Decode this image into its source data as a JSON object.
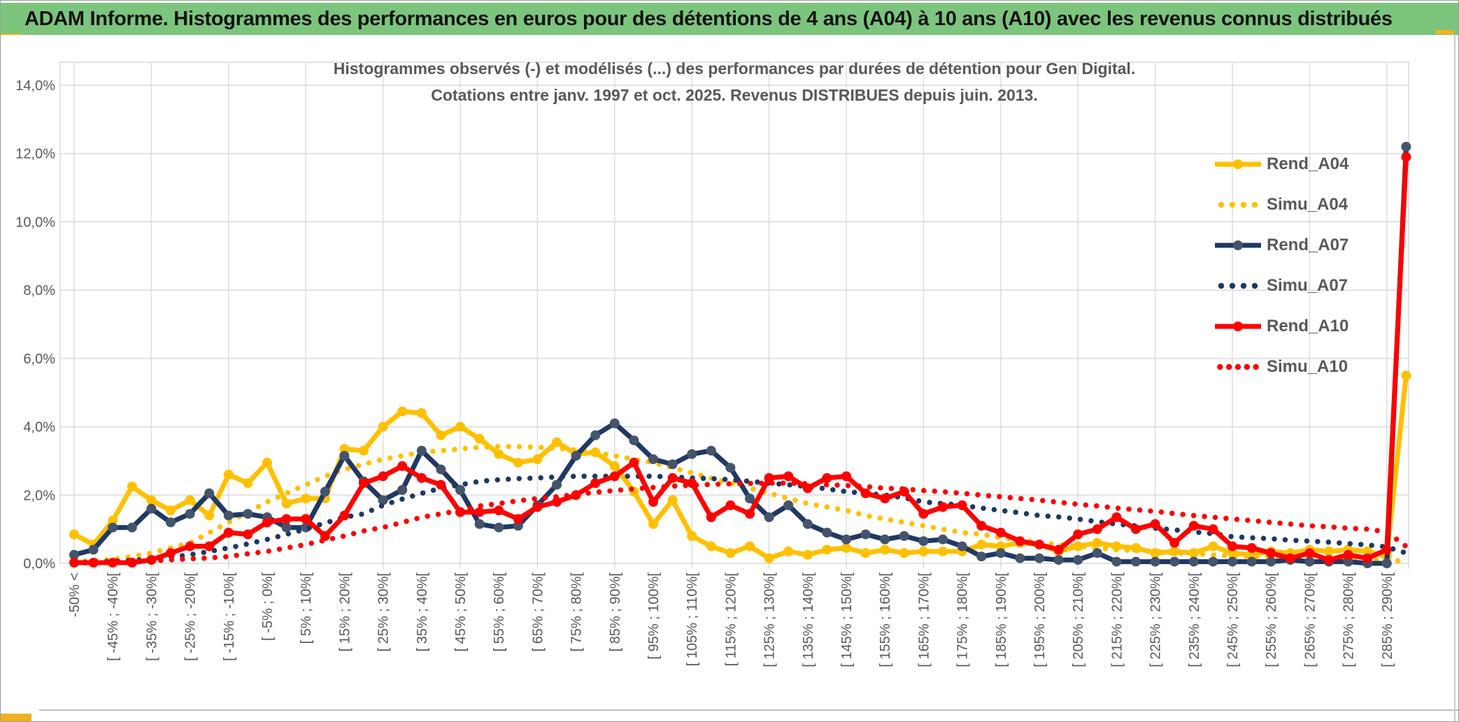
{
  "window": {
    "header_title": "ADAM Informe. Histogrammes des performances en euros pour des détentions de 4 ans (A04) à 10 ans (A10) avec les revenus connus distribués"
  },
  "colors": {
    "header_bg": "#7CC57D",
    "header_text": "#111111",
    "gold": "#FFC000",
    "navy": "#1F3864",
    "navy_marker": "#44546A",
    "red": "#FF0000",
    "grid": "#D9D9D9",
    "axis_text": "#595959",
    "title_text": "#595959",
    "accent": "#F2B21D"
  },
  "chart_data": {
    "type": "line",
    "title": "Histogrammes observés (-) et modélisés (...) des performances par durées de détention pour Gen Digital.",
    "subtitle": "Cotations entre janv. 1997 et oct. 2025. Revenus DISTRIBUES depuis juin. 2013.",
    "xlabel": "",
    "ylabel": "",
    "ylim": [
      0,
      14
    ],
    "ytick_step": 2,
    "ytick_labels": [
      "0,0%",
      "2,0%",
      "4,0%",
      "6,0%",
      "8,0%",
      "10,0%",
      "12,0%",
      "14,0%"
    ],
    "grid": true,
    "legend_position": "right",
    "categories": [
      "-50% <",
      "",
      "[ -45% ; -40%[",
      "",
      "[ -35% ; -30%[",
      "",
      "[ -25% ; -20%[",
      "",
      "[ -15% ; -10%[",
      "",
      "[ -5% ; 0%[",
      "",
      "[ 5% ; 10%[",
      "",
      "[ 15% ; 20%[",
      "",
      "[ 25% ; 30%[",
      "",
      "[ 35% ; 40%[",
      "",
      "[ 45% ; 50%[",
      "",
      "[ 55% ; 60%[",
      "",
      "[ 65% ; 70%[",
      "",
      "[ 75% ; 80%[",
      "",
      "[ 85% ; 90%[",
      "",
      "[ 95% ; 100%[",
      "",
      "[ 105% ; 110%[",
      "",
      "[ 115% ; 120%[",
      "",
      "[ 125% ; 130%[",
      "",
      "[ 135% ; 140%[",
      "",
      "[ 145% ; 150%[",
      "",
      "[ 155% ; 160%[",
      "",
      "[ 165% ; 170%[",
      "",
      "[ 175% ; 180%[",
      "",
      "[ 185% ; 190%[",
      "",
      "[ 195% ; 200%[",
      "",
      "[ 205% ; 210%[",
      "",
      "[ 215% ; 220%[",
      "",
      "[ 225% ; 230%[",
      "",
      "[ 235% ; 240%[",
      "",
      "[ 245% ; 250%[",
      "",
      "[ 255% ; 260%[",
      "",
      "[ 265% ; 270%[",
      "",
      "[ 275% ; 280%[",
      "",
      "[ 285% ; 290%[",
      ""
    ],
    "series": [
      {
        "name": "Rend_A04",
        "style": "solid",
        "color": "#FFC000",
        "marker_color": "#FFC000",
        "values": [
          0.85,
          0.55,
          1.25,
          2.25,
          1.85,
          1.55,
          1.85,
          1.4,
          2.6,
          2.35,
          2.95,
          1.75,
          1.9,
          1.9,
          3.35,
          3.3,
          4.0,
          4.45,
          4.4,
          3.75,
          4.0,
          3.65,
          3.2,
          2.95,
          3.05,
          3.55,
          3.2,
          3.25,
          2.85,
          2.1,
          1.15,
          1.85,
          0.8,
          0.5,
          0.3,
          0.5,
          0.15,
          0.35,
          0.25,
          0.4,
          0.45,
          0.3,
          0.4,
          0.3,
          0.35,
          0.35,
          0.35,
          0.55,
          0.5,
          0.6,
          0.55,
          0.35,
          0.5,
          0.6,
          0.5,
          0.45,
          0.3,
          0.35,
          0.3,
          0.5,
          0.3,
          0.25,
          0.35,
          0.3,
          0.4,
          0.35,
          0.4,
          0.35,
          0.2,
          5.5
        ]
      },
      {
        "name": "Simu_A04",
        "style": "dotted",
        "color": "#FFC000",
        "marker_color": "#FFC000",
        "values": [
          0.05,
          0.08,
          0.12,
          0.2,
          0.3,
          0.45,
          0.6,
          0.9,
          1.2,
          1.5,
          1.8,
          2.05,
          2.3,
          2.55,
          2.75,
          2.9,
          3.05,
          3.15,
          3.25,
          3.3,
          3.35,
          3.4,
          3.42,
          3.42,
          3.4,
          3.37,
          3.32,
          3.25,
          3.15,
          3.05,
          2.95,
          2.8,
          2.65,
          2.5,
          2.35,
          2.2,
          2.05,
          1.9,
          1.75,
          1.65,
          1.55,
          1.4,
          1.3,
          1.2,
          1.1,
          1.0,
          0.9,
          0.85,
          0.75,
          0.7,
          0.6,
          0.55,
          0.5,
          0.45,
          0.4,
          0.38,
          0.35,
          0.3,
          0.28,
          0.25,
          0.22,
          0.2,
          0.18,
          0.16,
          0.15,
          0.13,
          0.12,
          0.1,
          0.1,
          0.05
        ]
      },
      {
        "name": "Rend_A07",
        "style": "solid",
        "color": "#1F3864",
        "marker_color": "#44546A",
        "values": [
          0.25,
          0.4,
          1.05,
          1.05,
          1.6,
          1.2,
          1.45,
          2.05,
          1.4,
          1.45,
          1.35,
          1.05,
          1.05,
          2.1,
          3.15,
          2.4,
          1.85,
          2.15,
          3.3,
          2.75,
          2.15,
          1.15,
          1.05,
          1.1,
          1.7,
          2.3,
          3.15,
          3.75,
          4.1,
          3.6,
          3.05,
          2.9,
          3.2,
          3.3,
          2.8,
          1.9,
          1.35,
          1.7,
          1.15,
          0.9,
          0.7,
          0.85,
          0.7,
          0.8,
          0.65,
          0.7,
          0.5,
          0.2,
          0.3,
          0.15,
          0.15,
          0.1,
          0.1,
          0.3,
          0.05,
          0.05,
          0.05,
          0.05,
          0.05,
          0.05,
          0.05,
          0.05,
          0.05,
          0.1,
          0.05,
          0.05,
          0.05,
          0.0,
          0.0,
          12.2
        ]
      },
      {
        "name": "Simu_A07",
        "style": "dotted",
        "color": "#1F3864",
        "marker_color": "#1F3864",
        "values": [
          0.02,
          0.04,
          0.06,
          0.09,
          0.12,
          0.18,
          0.25,
          0.35,
          0.45,
          0.57,
          0.7,
          0.85,
          1.0,
          1.18,
          1.35,
          1.45,
          1.7,
          1.88,
          2.05,
          2.2,
          2.3,
          2.4,
          2.45,
          2.48,
          2.5,
          2.53,
          2.55,
          2.55,
          2.55,
          2.55,
          2.55,
          2.53,
          2.5,
          2.48,
          2.45,
          2.4,
          2.35,
          2.3,
          2.25,
          2.18,
          2.1,
          2.05,
          2.0,
          1.92,
          1.8,
          1.75,
          1.7,
          1.62,
          1.55,
          1.48,
          1.4,
          1.36,
          1.3,
          1.22,
          1.15,
          1.1,
          1.03,
          0.98,
          0.92,
          0.87,
          0.78,
          0.75,
          0.72,
          0.68,
          0.65,
          0.62,
          0.58,
          0.54,
          0.48,
          0.3
        ]
      },
      {
        "name": "Rend_A10",
        "style": "solid",
        "color": "#FF0000",
        "marker_color": "#FF0000",
        "values": [
          0.02,
          0.02,
          0.02,
          0.02,
          0.1,
          0.3,
          0.5,
          0.5,
          0.9,
          0.85,
          1.2,
          1.3,
          1.3,
          0.8,
          1.4,
          2.35,
          2.55,
          2.85,
          2.5,
          2.3,
          1.5,
          1.5,
          1.55,
          1.3,
          1.65,
          1.8,
          2.0,
          2.35,
          2.55,
          2.95,
          1.8,
          2.5,
          2.35,
          1.35,
          1.7,
          1.45,
          2.5,
          2.55,
          2.2,
          2.5,
          2.55,
          2.05,
          1.9,
          2.1,
          1.45,
          1.65,
          1.7,
          1.1,
          0.9,
          0.65,
          0.55,
          0.4,
          0.85,
          1.0,
          1.35,
          1.0,
          1.15,
          0.6,
          1.1,
          1.0,
          0.5,
          0.45,
          0.3,
          0.15,
          0.3,
          0.1,
          0.25,
          0.15,
          0.4,
          11.9
        ]
      },
      {
        "name": "Simu_A10",
        "style": "dotted",
        "color": "#FF0000",
        "marker_color": "#FF0000",
        "values": [
          0.01,
          0.02,
          0.03,
          0.05,
          0.07,
          0.1,
          0.13,
          0.16,
          0.2,
          0.28,
          0.35,
          0.45,
          0.55,
          0.68,
          0.8,
          0.95,
          1.05,
          1.2,
          1.35,
          1.45,
          1.55,
          1.68,
          1.75,
          1.83,
          1.9,
          1.95,
          2.02,
          2.08,
          2.13,
          2.18,
          2.22,
          2.26,
          2.29,
          2.31,
          2.33,
          2.34,
          2.35,
          2.35,
          2.33,
          2.3,
          2.28,
          2.25,
          2.2,
          2.18,
          2.13,
          2.1,
          2.05,
          2.0,
          1.95,
          1.9,
          1.85,
          1.79,
          1.73,
          1.68,
          1.62,
          1.57,
          1.52,
          1.46,
          1.4,
          1.35,
          1.3,
          1.25,
          1.2,
          1.15,
          1.1,
          1.07,
          1.03,
          1.0,
          0.92,
          0.5
        ]
      }
    ]
  }
}
